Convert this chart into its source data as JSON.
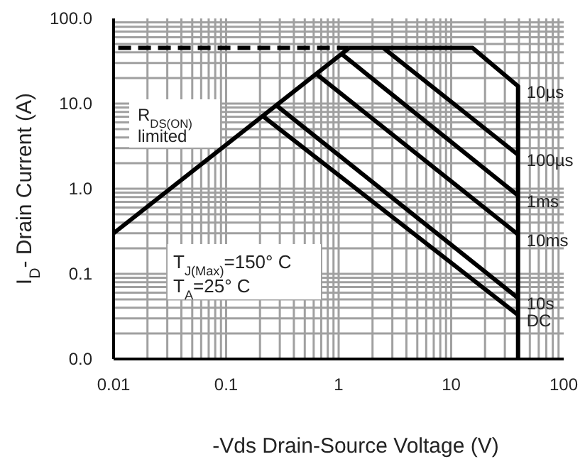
{
  "chart_data": {
    "type": "line",
    "xlabel": "-Vds Drain-Source Voltage (V)",
    "ylabel": "I$_{D}$- Drain Current (A)",
    "log": "xy",
    "grid": true,
    "marker": "none",
    "xlim": [
      0.01,
      100
    ],
    "xticks": [
      0.01,
      0.1,
      1,
      10,
      100
    ],
    "ylim": [
      0.01,
      100
    ],
    "yticks": [
      {
        "value": 0.01,
        "label": "0.0"
      },
      {
        "value": 0.1,
        "label": "0.1"
      },
      {
        "value": 1,
        "label": "1.0"
      },
      {
        "value": 10,
        "label": "10.0"
      },
      {
        "value": 100,
        "label": "100.0"
      }
    ],
    "series": [
      {
        "color": "#000000",
        "x": [
          0.01,
          1.24
        ],
        "values": [
          0.3,
          45
        ]
      },
      {
        "color": "#000000",
        "line_style": "dashed",
        "x": [
          0.011,
          1.24
        ],
        "values": [
          45,
          45
        ]
      },
      {
        "name": "10µs",
        "color": "#000000",
        "x": [
          1.24,
          15.5,
          39.3,
          39.3
        ],
        "values": [
          45,
          45,
          16,
          0.01
        ]
      },
      {
        "name": "100µs",
        "color": "#000000",
        "x": [
          2.5,
          39.3
        ],
        "values": [
          45,
          2.5
        ]
      },
      {
        "name": "1ms",
        "color": "#000000",
        "x": [
          1.07,
          39.3
        ],
        "values": [
          38,
          0.83
        ]
      },
      {
        "name": "10ms",
        "color": "#000000",
        "x": [
          0.64,
          39.3
        ],
        "values": [
          22,
          0.29
        ]
      },
      {
        "name": "10s",
        "color": "#000000",
        "x": [
          0.28,
          39.3
        ],
        "values": [
          9.5,
          0.052
        ]
      },
      {
        "name": "DC",
        "color": "#000000",
        "x": [
          0.21,
          39.3
        ],
        "values": [
          7.2,
          0.033
        ]
      }
    ],
    "annotations": [
      "R$_{DS(ON)}$ limited",
      "T$_{J(Max)}$=150° C",
      "T$_{A}$=25° C"
    ]
  }
}
